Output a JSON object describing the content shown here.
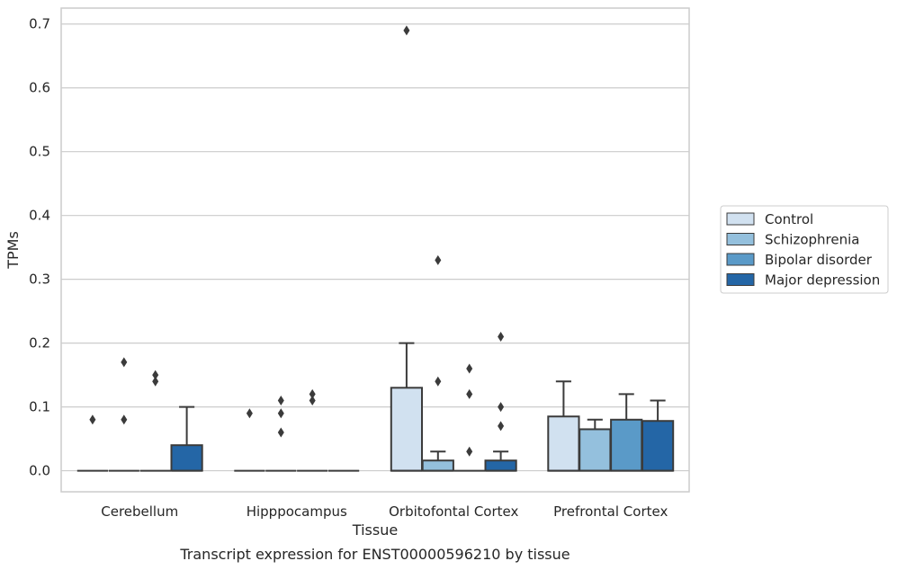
{
  "chart_data": {
    "type": "boxplot",
    "title": "",
    "caption": "Transcript expression for ENST00000596210 by tissue",
    "xlabel": "Tissue",
    "ylabel": "TPMs",
    "ylim": [
      -0.033,
      0.725
    ],
    "yticks": [
      0.0,
      0.1,
      0.2,
      0.3,
      0.4,
      0.5,
      0.6,
      0.7
    ],
    "ytick_labels": [
      "0.0",
      "0.1",
      "0.2",
      "0.3",
      "0.4",
      "0.5",
      "0.6",
      "0.7"
    ],
    "grid": "horizontal",
    "legend_position": "right",
    "categories": [
      "Cerebellum",
      "Hipppocampus",
      "Orbitofontal Cortex",
      "Prefrontal Cortex"
    ],
    "series": [
      {
        "name": "Control",
        "color": "#d1e1f0",
        "boxes": [
          {
            "q1": 0,
            "median": 0,
            "q3": 0,
            "whisker_low": 0,
            "whisker_high": 0,
            "outliers": [
              0.08
            ]
          },
          {
            "q1": 0,
            "median": 0,
            "q3": 0,
            "whisker_low": 0,
            "whisker_high": 0,
            "outliers": [
              0.09
            ]
          },
          {
            "q1": 0,
            "median": 0,
            "q3": 0.13,
            "whisker_low": 0,
            "whisker_high": 0.2,
            "outliers": [
              0.69
            ]
          },
          {
            "q1": 0,
            "median": 0,
            "q3": 0.085,
            "whisker_low": 0,
            "whisker_high": 0.14,
            "outliers": []
          }
        ]
      },
      {
        "name": "Schizophrenia",
        "color": "#94c0dd",
        "boxes": [
          {
            "q1": 0,
            "median": 0,
            "q3": 0,
            "whisker_low": 0,
            "whisker_high": 0,
            "outliers": [
              0.08,
              0.17
            ]
          },
          {
            "q1": 0,
            "median": 0,
            "q3": 0,
            "whisker_low": 0,
            "whisker_high": 0,
            "outliers": [
              0.06,
              0.09,
              0.11
            ]
          },
          {
            "q1": 0,
            "median": 0,
            "q3": 0.016,
            "whisker_low": 0,
            "whisker_high": 0.03,
            "outliers": [
              0.14,
              0.33
            ]
          },
          {
            "q1": 0,
            "median": 0,
            "q3": 0.065,
            "whisker_low": 0,
            "whisker_high": 0.08,
            "outliers": []
          }
        ]
      },
      {
        "name": "Bipolar disorder",
        "color": "#5a9ac8",
        "boxes": [
          {
            "q1": 0,
            "median": 0,
            "q3": 0,
            "whisker_low": 0,
            "whisker_high": 0,
            "outliers": [
              0.14,
              0.15
            ]
          },
          {
            "q1": 0,
            "median": 0,
            "q3": 0,
            "whisker_low": 0,
            "whisker_high": 0,
            "outliers": [
              0.11,
              0.12
            ]
          },
          {
            "q1": 0,
            "median": 0,
            "q3": 0,
            "whisker_low": 0,
            "whisker_high": 0,
            "outliers": [
              0.03,
              0.12,
              0.16
            ]
          },
          {
            "q1": 0,
            "median": 0,
            "q3": 0.08,
            "whisker_low": 0,
            "whisker_high": 0.12,
            "outliers": []
          }
        ]
      },
      {
        "name": "Major depression",
        "color": "#2466a6",
        "boxes": [
          {
            "q1": 0,
            "median": 0,
            "q3": 0.04,
            "whisker_low": 0,
            "whisker_high": 0.1,
            "outliers": []
          },
          {
            "q1": 0,
            "median": 0,
            "q3": 0,
            "whisker_low": 0,
            "whisker_high": 0,
            "outliers": []
          },
          {
            "q1": 0,
            "median": 0,
            "q3": 0.016,
            "whisker_low": 0,
            "whisker_high": 0.03,
            "outliers": [
              0.07,
              0.1,
              0.21
            ]
          },
          {
            "q1": 0,
            "median": 0,
            "q3": 0.078,
            "whisker_low": 0,
            "whisker_high": 0.11,
            "outliers": []
          }
        ]
      }
    ]
  }
}
